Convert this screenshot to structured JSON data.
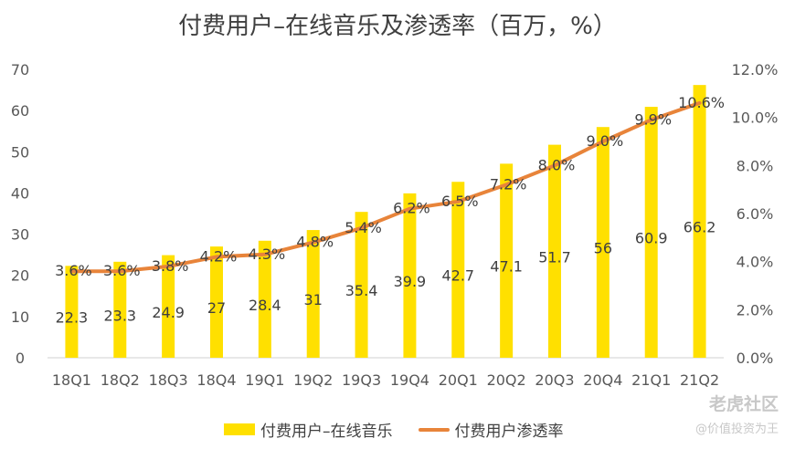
{
  "chart_data": {
    "type": "bar",
    "title": "付费用户–在线音乐及渗透率（百万，%）",
    "categories": [
      "18Q1",
      "18Q2",
      "18Q3",
      "18Q4",
      "19Q1",
      "19Q2",
      "19Q3",
      "19Q4",
      "20Q1",
      "20Q2",
      "20Q3",
      "20Q4",
      "21Q1",
      "21Q2"
    ],
    "series": [
      {
        "name": "付费用户–在线音乐",
        "type": "bar",
        "axis": "left",
        "values": [
          22.3,
          23.3,
          24.9,
          27,
          28.4,
          31,
          35.4,
          39.9,
          42.7,
          47.1,
          51.7,
          56,
          60.9,
          66.2
        ],
        "labels": [
          "22.3",
          "23.3",
          "24.9",
          "27",
          "28.4",
          "31",
          "35.4",
          "39.9",
          "42.7",
          "47.1",
          "51.7",
          "56",
          "60.9",
          "66.2"
        ],
        "color": "#FFE000"
      },
      {
        "name": "付费用户渗透率",
        "type": "line",
        "axis": "right",
        "values": [
          3.6,
          3.6,
          3.8,
          4.2,
          4.3,
          4.8,
          5.4,
          6.2,
          6.5,
          7.2,
          8.0,
          9.0,
          9.9,
          10.6
        ],
        "labels": [
          "3.6%",
          "3.6%",
          "3.8%",
          "4.2%",
          "4.3%",
          "4.8%",
          "5.4%",
          "6.2%",
          "6.5%",
          "7.2%",
          "8.0%",
          "9.0%",
          "9.9%",
          "10.6%"
        ],
        "color": "#E8843A"
      }
    ],
    "y_left": {
      "ylim": [
        0,
        70
      ],
      "ticks": [
        "0",
        "10",
        "20",
        "30",
        "40",
        "50",
        "60",
        "70"
      ]
    },
    "y_right": {
      "ylim": [
        0,
        12
      ],
      "ticks": [
        "0.0%",
        "2.0%",
        "4.0%",
        "6.0%",
        "8.0%",
        "10.0%",
        "12.0%"
      ]
    },
    "grid": false,
    "legend": "bottom"
  },
  "watermark": {
    "logo": "老虎社区",
    "sub": "@价值投资为王"
  }
}
